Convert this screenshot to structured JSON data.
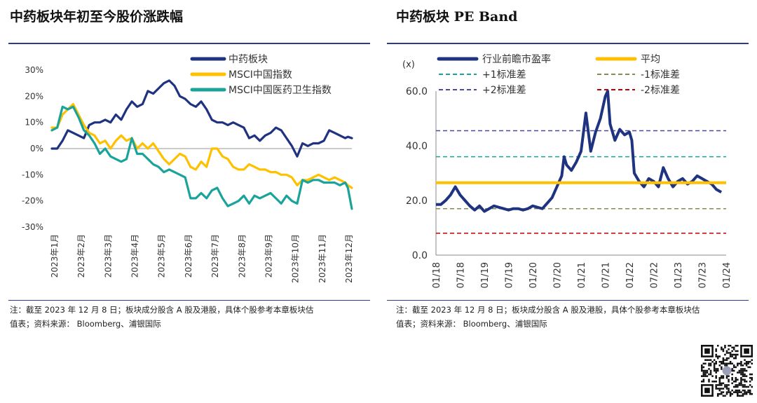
{
  "left": {
    "title": "中药板块年初至今股价涨跌幅",
    "note_line1": "注：截至 2023 年 12 月 8 日；板块成分股含 A 股及港股，具体个股参考本章板块估",
    "note_line2": "值表；资料来源： Bloomberg、浦银国际"
  },
  "right": {
    "title": "中药板块 PE Band",
    "note_line1": "注：截至 2023 年 12 月 8 日；板块成分股含 A 股及港股，具体个股参考本章板块估",
    "note_line2": "值表；资料来源： Bloomberg、浦银国际"
  },
  "colors": {
    "navy": "#1f3380",
    "gold": "#ffc000",
    "teal": "#1aa39a",
    "rule": "#2e3a8c"
  },
  "chart_data": [
    {
      "type": "line",
      "title": "中药板块年初至今股价涨跌幅",
      "xlabel": "",
      "ylabel": "",
      "ylim": [
        -0.3,
        0.3
      ],
      "yticks": [
        0.3,
        0.2,
        0.1,
        0.0,
        -0.1,
        -0.2,
        -0.3
      ],
      "ytick_labels": [
        "30%",
        "20%",
        "10%",
        "0%",
        "-10%",
        "-20%",
        "-30%"
      ],
      "categories": [
        "2023年1月",
        "2023年2月",
        "2023年3月",
        "2023年4月",
        "2023年5月",
        "2023年6月",
        "2023年7月",
        "2023年8月",
        "2023年9月",
        "2023年10月",
        "2023年11月",
        "2023年12月"
      ],
      "x_domain": [
        0,
        11.25
      ],
      "legend_position": "top-right",
      "series": [
        {
          "name": "中药板块",
          "color": "#1f3380",
          "x": [
            0,
            0.2,
            0.4,
            0.6,
            0.8,
            1.0,
            1.2,
            1.4,
            1.6,
            1.8,
            2.0,
            2.2,
            2.4,
            2.6,
            2.8,
            3.0,
            3.2,
            3.4,
            3.6,
            3.8,
            4.0,
            4.2,
            4.4,
            4.6,
            4.8,
            5.0,
            5.2,
            5.4,
            5.6,
            5.8,
            6.0,
            6.2,
            6.4,
            6.6,
            6.8,
            7.0,
            7.2,
            7.4,
            7.6,
            7.8,
            8.0,
            8.2,
            8.4,
            8.6,
            8.8,
            9.0,
            9.2,
            9.4,
            9.6,
            9.8,
            10.0,
            10.2,
            10.4,
            10.6,
            10.8,
            11.0,
            11.1,
            11.25
          ],
          "y": [
            0.0,
            0.0,
            0.03,
            0.07,
            0.06,
            0.05,
            0.04,
            0.09,
            0.1,
            0.1,
            0.11,
            0.1,
            0.13,
            0.11,
            0.15,
            0.18,
            0.16,
            0.17,
            0.22,
            0.21,
            0.23,
            0.25,
            0.26,
            0.24,
            0.2,
            0.19,
            0.17,
            0.16,
            0.18,
            0.15,
            0.11,
            0.1,
            0.1,
            0.09,
            0.1,
            0.09,
            0.08,
            0.04,
            0.05,
            0.03,
            0.05,
            0.06,
            0.08,
            0.07,
            0.04,
            0.01,
            -0.03,
            0.02,
            0.01,
            0.02,
            0.02,
            0.03,
            0.07,
            0.06,
            0.05,
            0.04,
            0.045,
            0.04
          ]
        },
        {
          "name": "MSCI中国指数",
          "color": "#ffc000",
          "x": [
            0,
            0.2,
            0.4,
            0.6,
            0.8,
            1.0,
            1.2,
            1.4,
            1.6,
            1.8,
            2.0,
            2.2,
            2.4,
            2.6,
            2.8,
            3.0,
            3.2,
            3.4,
            3.6,
            3.8,
            4.0,
            4.2,
            4.4,
            4.6,
            4.8,
            5.0,
            5.2,
            5.4,
            5.6,
            5.8,
            6.0,
            6.2,
            6.4,
            6.6,
            6.8,
            7.0,
            7.2,
            7.4,
            7.6,
            7.8,
            8.0,
            8.2,
            8.4,
            8.6,
            8.8,
            9.0,
            9.2,
            9.4,
            9.6,
            9.8,
            10.0,
            10.2,
            10.4,
            10.6,
            10.8,
            11.0,
            11.1,
            11.25
          ],
          "y": [
            0.08,
            0.08,
            0.13,
            0.15,
            0.17,
            0.13,
            0.09,
            0.06,
            0.05,
            0.02,
            0.03,
            0.0,
            0.03,
            0.05,
            0.03,
            0.04,
            0.0,
            0.02,
            0.0,
            0.02,
            -0.01,
            -0.04,
            -0.06,
            -0.04,
            -0.02,
            -0.03,
            -0.07,
            -0.08,
            -0.05,
            -0.07,
            0.0,
            0.0,
            -0.03,
            -0.04,
            -0.07,
            -0.08,
            -0.08,
            -0.06,
            -0.07,
            -0.08,
            -0.08,
            -0.09,
            -0.09,
            -0.1,
            -0.1,
            -0.11,
            -0.14,
            -0.12,
            -0.12,
            -0.11,
            -0.1,
            -0.11,
            -0.12,
            -0.11,
            -0.12,
            -0.13,
            -0.14,
            -0.15
          ]
        },
        {
          "name": "MSCI中国医药卫生指数",
          "color": "#1aa39a",
          "x": [
            0,
            0.2,
            0.4,
            0.6,
            0.8,
            1.0,
            1.2,
            1.4,
            1.6,
            1.8,
            2.0,
            2.2,
            2.4,
            2.6,
            2.8,
            3.0,
            3.2,
            3.4,
            3.6,
            3.8,
            4.0,
            4.2,
            4.4,
            4.6,
            4.8,
            5.0,
            5.2,
            5.4,
            5.6,
            5.8,
            6.0,
            6.2,
            6.4,
            6.6,
            6.8,
            7.0,
            7.2,
            7.4,
            7.6,
            7.8,
            8.0,
            8.2,
            8.4,
            8.6,
            8.8,
            9.0,
            9.2,
            9.4,
            9.6,
            9.8,
            10.0,
            10.2,
            10.4,
            10.6,
            10.8,
            11.0,
            11.1,
            11.25
          ],
          "y": [
            0.07,
            0.08,
            0.16,
            0.15,
            0.16,
            0.12,
            0.07,
            0.05,
            0.02,
            -0.02,
            0.0,
            -0.03,
            -0.04,
            -0.05,
            -0.04,
            0.04,
            -0.02,
            -0.02,
            -0.04,
            -0.06,
            -0.07,
            -0.09,
            -0.08,
            -0.09,
            -0.1,
            -0.11,
            -0.19,
            -0.19,
            -0.17,
            -0.19,
            -0.16,
            -0.15,
            -0.19,
            -0.22,
            -0.21,
            -0.2,
            -0.18,
            -0.21,
            -0.18,
            -0.19,
            -0.18,
            -0.17,
            -0.19,
            -0.21,
            -0.18,
            -0.2,
            -0.21,
            -0.12,
            -0.13,
            -0.12,
            -0.12,
            -0.13,
            -0.13,
            -0.13,
            -0.14,
            -0.13,
            -0.15,
            -0.23
          ]
        }
      ]
    },
    {
      "type": "line",
      "title": "中药板块 PE Band",
      "xlabel": "",
      "ylabel": "(x)",
      "ylim": [
        0,
        60
      ],
      "yticks": [
        60,
        40,
        20,
        0
      ],
      "ytick_labels": [
        "60.0",
        "40.0",
        "20.0",
        "0.0"
      ],
      "x_tick_labels": [
        "01/18",
        "07/18",
        "01/19",
        "07/19",
        "01/20",
        "07/20",
        "01/21",
        "07/21",
        "01/22",
        "07/22",
        "01/23",
        "07/23",
        "01/24"
      ],
      "x_domain": [
        0,
        12
      ],
      "legend_position": "top",
      "series": [
        {
          "name": "行业前瞻市盈率",
          "color": "#1f3380",
          "width": 4,
          "x": [
            0,
            0.2,
            0.4,
            0.6,
            0.8,
            1.0,
            1.2,
            1.4,
            1.6,
            1.8,
            2.0,
            2.2,
            2.4,
            2.6,
            2.8,
            3.0,
            3.2,
            3.4,
            3.6,
            3.8,
            4.0,
            4.2,
            4.4,
            4.6,
            4.8,
            5.0,
            5.2,
            5.3,
            5.4,
            5.6,
            5.8,
            6.0,
            6.2,
            6.4,
            6.6,
            6.8,
            7.0,
            7.1,
            7.2,
            7.4,
            7.6,
            7.8,
            8.0,
            8.1,
            8.2,
            8.4,
            8.6,
            8.8,
            9.0,
            9.2,
            9.4,
            9.6,
            9.8,
            10.0,
            10.2,
            10.4,
            10.6,
            10.8,
            11.0,
            11.2,
            11.4,
            11.6,
            11.8
          ],
          "y": [
            18.5,
            18.5,
            20,
            22,
            25,
            22,
            20,
            18,
            16.5,
            18,
            16,
            17,
            18,
            17.5,
            17,
            16.5,
            17,
            17,
            16.5,
            17,
            18,
            17.5,
            17,
            19,
            21,
            25,
            29,
            36,
            33,
            31,
            34,
            38,
            52,
            38,
            45,
            50,
            58,
            60,
            48,
            42,
            46,
            44,
            45,
            42,
            30,
            27,
            25,
            28,
            27,
            25,
            32,
            28,
            25,
            27,
            28,
            26,
            27,
            29,
            28,
            27,
            26,
            24,
            23
          ]
        },
        {
          "name": "平均",
          "color": "#ffc000",
          "width": 4,
          "x": [
            0,
            12
          ],
          "y": [
            26.5,
            26.5
          ]
        },
        {
          "name": "+1标准差",
          "color": "#1aa39a",
          "dash": true,
          "x": [
            0,
            12
          ],
          "y": [
            36,
            36
          ]
        },
        {
          "name": "-1标准差",
          "color": "#8a8a55",
          "dash": true,
          "x": [
            0,
            12
          ],
          "y": [
            17,
            17
          ]
        },
        {
          "name": "+2标准差",
          "color": "#4a4aa0",
          "dash": true,
          "x": [
            0,
            12
          ],
          "y": [
            45.5,
            45.5
          ]
        },
        {
          "name": "-2标准差",
          "color": "#c00000",
          "dash": true,
          "x": [
            0,
            12
          ],
          "y": [
            8,
            8
          ]
        }
      ]
    }
  ]
}
